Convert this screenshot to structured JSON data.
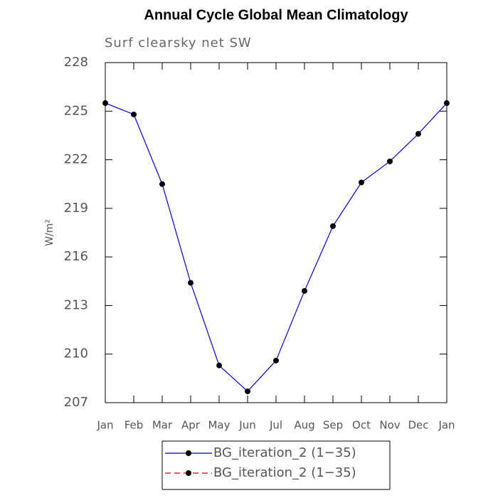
{
  "chart_data": {
    "type": "line",
    "title": "Annual Cycle Global Mean Climatology",
    "subtitle": "Surf clearsky net SW",
    "y_label": "W/m²",
    "categories": [
      "Jan",
      "Feb",
      "Mar",
      "Apr",
      "May",
      "Jun",
      "Jul",
      "Aug",
      "Sep",
      "Oct",
      "Nov",
      "Dec",
      "Jan"
    ],
    "series": [
      {
        "name": "BG_iteration_2 (1−35)",
        "color": "#0000cc",
        "dash": false,
        "values": [
          225.5,
          224.8,
          220.5,
          214.4,
          209.3,
          207.7,
          209.6,
          213.9,
          217.9,
          220.6,
          221.9,
          223.6,
          225.5
        ]
      },
      {
        "name": "BG_iteration_2 (1−35)",
        "color": "#cc0000",
        "dash": true,
        "values": [
          null,
          null,
          null,
          null,
          null,
          null,
          null,
          null,
          null,
          null,
          null,
          null,
          null
        ]
      }
    ],
    "ylim": [
      207,
      228
    ],
    "yticks": [
      207,
      210,
      213,
      216,
      219,
      222,
      225,
      228
    ]
  }
}
